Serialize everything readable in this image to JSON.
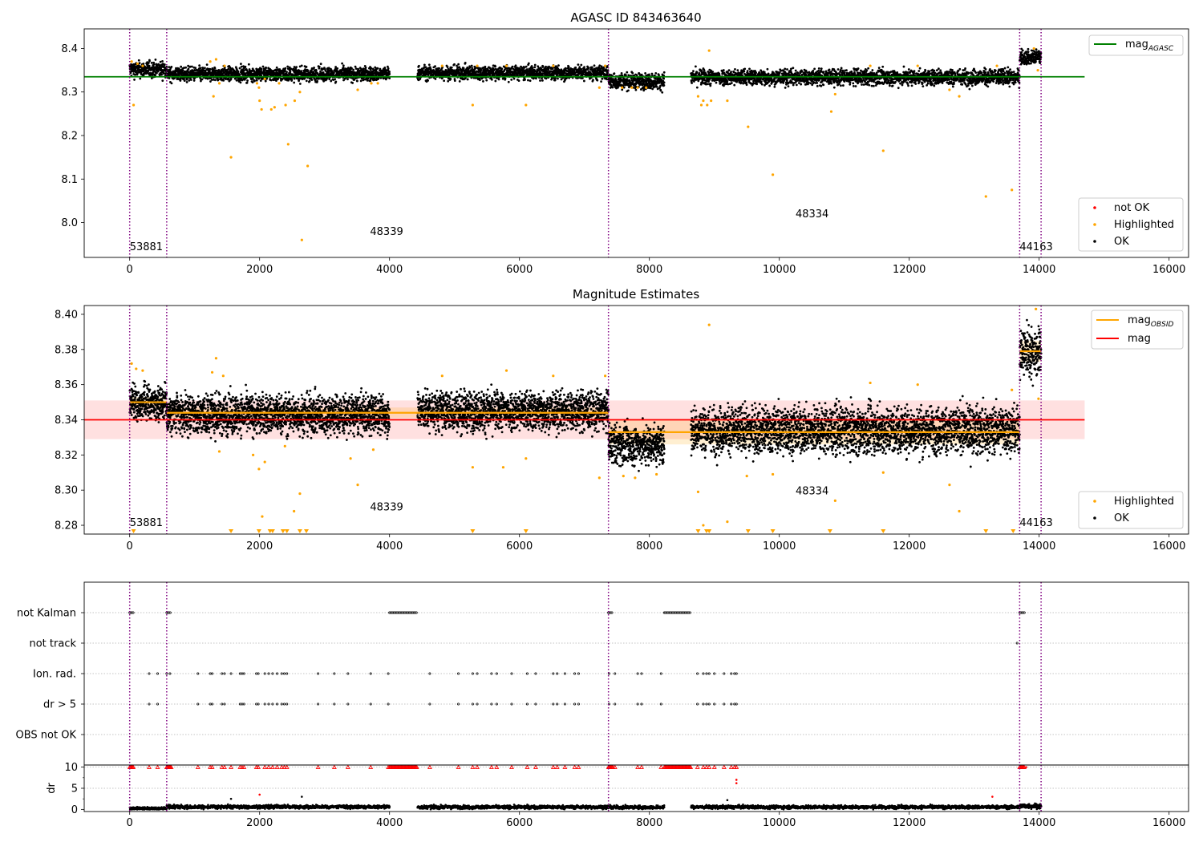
{
  "colors": {
    "ok": "#000000",
    "highlighted": "#ffa500",
    "not_ok": "#ff0000",
    "mag_agasc_line": "#008000",
    "mag_line": "#ff0000",
    "mag_obsid_line": "#ffa500",
    "mag_band": "#ffcccc",
    "obs_boundary": "#800080"
  },
  "chart_data": [
    {
      "type": "scatter",
      "title": "AGASC ID 843463640",
      "xlim": [
        -700,
        16300
      ],
      "ylim": [
        7.92,
        8.445
      ],
      "x_ticks": [
        0,
        2000,
        4000,
        6000,
        8000,
        10000,
        12000,
        14000,
        16000
      ],
      "x_tick_labels": [
        "0",
        "2000",
        "4000",
        "6000",
        "8000",
        "10000",
        "12000",
        "14000",
        "16000"
      ],
      "y_ticks": [
        8.0,
        8.1,
        8.2,
        8.3,
        8.4
      ],
      "y_tick_labels": [
        "8.0",
        "8.1",
        "8.2",
        "8.3",
        "8.4"
      ],
      "mag_agasc": 8.335,
      "mag_agasc_xrange": [
        -700,
        14700
      ],
      "obs_boundaries": [
        0,
        570,
        7370,
        13700,
        14030
      ],
      "obs_labels": [
        {
          "text": "53881",
          "x": 0,
          "y": 7.937
        },
        {
          "text": "48339",
          "x": 3700,
          "y": 7.972
        },
        {
          "text": "48334",
          "x": 10250,
          "y": 8.012
        },
        {
          "text": "44163",
          "x": 13700,
          "y": 7.937
        }
      ],
      "legend_lines": [
        {
          "name": "mag",
          "subscript": "AGASC"
        }
      ],
      "legend_points": [
        {
          "name": "not OK",
          "color_key": "not_ok"
        },
        {
          "name": "Highlighted",
          "color_key": "highlighted"
        },
        {
          "name": "OK",
          "color_key": "ok"
        }
      ],
      "legend_lines_position": "upper right",
      "legend_points_position": "lower right",
      "segments": [
        {
          "x": [
            0,
            570
          ],
          "center": 8.352,
          "spread": 0.009
        },
        {
          "x": [
            570,
            4000
          ],
          "center": 8.341,
          "spread": 0.008
        },
        {
          "x": [
            4430,
            7370
          ],
          "center": 8.344,
          "spread": 0.008
        },
        {
          "x": [
            7370,
            8230
          ],
          "center": 8.325,
          "spread": 0.009
        },
        {
          "x": [
            8640,
            13700
          ],
          "center": 8.334,
          "spread": 0.009
        },
        {
          "x": [
            13700,
            14030
          ],
          "center": 8.38,
          "spread": 0.008
        }
      ],
      "highlighted_points": [
        [
          30,
          8.37
        ],
        [
          60,
          8.27
        ],
        [
          120,
          8.365
        ],
        [
          200,
          8.36
        ],
        [
          1240,
          8.37
        ],
        [
          1290,
          8.29
        ],
        [
          1330,
          8.375
        ],
        [
          1380,
          8.32
        ],
        [
          1460,
          8.36
        ],
        [
          1560,
          8.15
        ],
        [
          1960,
          8.32
        ],
        [
          1990,
          8.31
        ],
        [
          2000,
          8.28
        ],
        [
          2030,
          8.26
        ],
        [
          2080,
          8.33
        ],
        [
          2180,
          8.26
        ],
        [
          2230,
          8.265
        ],
        [
          2300,
          8.32
        ],
        [
          2400,
          8.27
        ],
        [
          2440,
          8.18
        ],
        [
          2540,
          8.28
        ],
        [
          2620,
          8.3
        ],
        [
          2650,
          7.96
        ],
        [
          2740,
          8.13
        ],
        [
          3510,
          8.305
        ],
        [
          3720,
          8.32
        ],
        [
          3820,
          8.32
        ],
        [
          4810,
          8.36
        ],
        [
          5280,
          8.27
        ],
        [
          5350,
          8.36
        ],
        [
          5800,
          8.36
        ],
        [
          6100,
          8.27
        ],
        [
          6520,
          8.36
        ],
        [
          7230,
          8.31
        ],
        [
          7320,
          8.36
        ],
        [
          7580,
          8.31
        ],
        [
          7730,
          8.31
        ],
        [
          7820,
          8.31
        ],
        [
          7950,
          8.31
        ],
        [
          8750,
          8.29
        ],
        [
          8800,
          8.27
        ],
        [
          8830,
          8.28
        ],
        [
          8890,
          8.27
        ],
        [
          8920,
          8.395
        ],
        [
          8950,
          8.28
        ],
        [
          9200,
          8.28
        ],
        [
          9520,
          8.22
        ],
        [
          9900,
          8.11
        ],
        [
          10800,
          8.255
        ],
        [
          10860,
          8.295
        ],
        [
          11400,
          8.36
        ],
        [
          11600,
          8.165
        ],
        [
          12130,
          8.36
        ],
        [
          12620,
          8.305
        ],
        [
          12770,
          8.29
        ],
        [
          13180,
          8.06
        ],
        [
          13350,
          8.36
        ],
        [
          13580,
          8.075
        ],
        [
          13920,
          8.4
        ],
        [
          13980,
          8.35
        ]
      ],
      "not_ok_points": []
    },
    {
      "type": "scatter",
      "title": "Magnitude Estimates",
      "xlim": [
        -700,
        16300
      ],
      "ylim": [
        8.275,
        8.405
      ],
      "x_ticks": [
        0,
        2000,
        4000,
        6000,
        8000,
        10000,
        12000,
        14000,
        16000
      ],
      "x_tick_labels": [
        "0",
        "2000",
        "4000",
        "6000",
        "8000",
        "10000",
        "12000",
        "14000",
        "16000"
      ],
      "y_ticks": [
        8.28,
        8.3,
        8.32,
        8.34,
        8.36,
        8.38,
        8.4
      ],
      "y_tick_labels": [
        "8.28",
        "8.30",
        "8.32",
        "8.34",
        "8.36",
        "8.38",
        "8.40"
      ],
      "mag": 8.34,
      "mag_band": [
        8.329,
        8.351
      ],
      "mag_xrange": [
        -700,
        14700
      ],
      "mag_obsid": [
        {
          "x": [
            0,
            570
          ],
          "value": 8.35
        },
        {
          "x": [
            570,
            7370
          ],
          "value": 8.344
        },
        {
          "x": [
            7370,
            13700
          ],
          "value": 8.333
        },
        {
          "x": [
            13700,
            14030
          ],
          "value": 8.379
        }
      ],
      "mag_obsid_band": [
        {
          "x": [
            0,
            570
          ],
          "range": [
            8.347,
            8.353
          ]
        },
        {
          "x": [
            570,
            7370
          ],
          "range": [
            8.341,
            8.347
          ]
        },
        {
          "x": [
            7370,
            13700
          ],
          "range": [
            8.326,
            8.34
          ]
        },
        {
          "x": [
            13700,
            14030
          ],
          "range": [
            8.373,
            8.385
          ]
        }
      ],
      "obs_boundaries": [
        0,
        570,
        7370,
        13700,
        14030
      ],
      "obs_labels": [
        {
          "text": "53881",
          "x": 0,
          "y": 8.2795
        },
        {
          "text": "48339",
          "x": 3700,
          "y": 8.2885
        },
        {
          "text": "48334",
          "x": 10250,
          "y": 8.2975
        },
        {
          "text": "44163",
          "x": 13700,
          "y": 8.2795
        }
      ],
      "legend_lines": [
        {
          "name": "mag",
          "subscript": "OBSID",
          "color_key": "mag_obsid_line"
        },
        {
          "name": "mag",
          "subscript": "",
          "color_key": "mag_line"
        }
      ],
      "legend_points": [
        {
          "name": "Highlighted",
          "color_key": "highlighted"
        },
        {
          "name": "OK",
          "color_key": "ok"
        }
      ],
      "legend_lines_position": "upper right",
      "legend_points_position": "lower right",
      "segments": [
        {
          "x": [
            0,
            570
          ],
          "center": 8.35,
          "spread": 0.0045
        },
        {
          "x": [
            570,
            4000
          ],
          "center": 8.343,
          "spread": 0.0055
        },
        {
          "x": [
            4430,
            7370
          ],
          "center": 8.345,
          "spread": 0.0055
        },
        {
          "x": [
            7370,
            8230
          ],
          "center": 8.326,
          "spread": 0.0055
        },
        {
          "x": [
            8640,
            13700
          ],
          "center": 8.334,
          "spread": 0.0065
        },
        {
          "x": [
            13700,
            14030
          ],
          "center": 8.379,
          "spread": 0.007
        }
      ],
      "highlighted_points": [
        [
          30,
          8.372
        ],
        [
          100,
          8.369
        ],
        [
          200,
          8.368
        ],
        [
          1270,
          8.367
        ],
        [
          1330,
          8.375
        ],
        [
          1380,
          8.322
        ],
        [
          1440,
          8.365
        ],
        [
          1900,
          8.32
        ],
        [
          1990,
          8.312
        ],
        [
          2040,
          8.285
        ],
        [
          2080,
          8.316
        ],
        [
          2390,
          8.325
        ],
        [
          2530,
          8.288
        ],
        [
          2620,
          8.298
        ],
        [
          3400,
          8.318
        ],
        [
          3510,
          8.303
        ],
        [
          3750,
          8.323
        ],
        [
          4810,
          8.365
        ],
        [
          5280,
          8.313
        ],
        [
          5750,
          8.313
        ],
        [
          5800,
          8.368
        ],
        [
          6100,
          8.318
        ],
        [
          6520,
          8.365
        ],
        [
          7230,
          8.307
        ],
        [
          7320,
          8.365
        ],
        [
          7600,
          8.308
        ],
        [
          7780,
          8.307
        ],
        [
          8110,
          8.309
        ],
        [
          8750,
          8.299
        ],
        [
          8830,
          8.28
        ],
        [
          8920,
          8.394
        ],
        [
          9200,
          8.282
        ],
        [
          9500,
          8.308
        ],
        [
          9900,
          8.309
        ],
        [
          10860,
          8.294
        ],
        [
          11400,
          8.361
        ],
        [
          11600,
          8.31
        ],
        [
          12130,
          8.36
        ],
        [
          12620,
          8.303
        ],
        [
          12770,
          8.288
        ],
        [
          13580,
          8.357
        ],
        [
          13950,
          8.403
        ],
        [
          13990,
          8.352
        ]
      ],
      "clipped_highlighted_x": [
        60,
        1560,
        1990,
        2160,
        2200,
        2360,
        2420,
        2620,
        2720,
        5280,
        6100,
        8750,
        8880,
        8920,
        9520,
        9900,
        10780,
        11600,
        13180,
        13600
      ]
    },
    {
      "type": "scatter",
      "title": "",
      "xlim": [
        -700,
        16300
      ],
      "x_ticks": [
        0,
        2000,
        4000,
        6000,
        8000,
        10000,
        12000,
        14000,
        16000
      ],
      "x_tick_labels": [
        "0",
        "2000",
        "4000",
        "6000",
        "8000",
        "10000",
        "12000",
        "14000",
        "16000"
      ],
      "flag_rows": [
        "not Kalman",
        "not track",
        "Ion. rad.",
        "dr > 5",
        "OBS not OK"
      ],
      "obs_boundaries": [
        0,
        570,
        7370,
        13700,
        14030
      ],
      "flags": {
        "not Kalman": {
          "clusters": [
            [
              0,
              60
            ],
            [
              570,
              640
            ],
            [
              4000,
              4430
            ],
            [
              7370,
              7440
            ],
            [
              8230,
              8640
            ],
            [
              13700,
              13780
            ]
          ],
          "points": []
        },
        "not track": {
          "clusters": [],
          "points": [
            13660
          ]
        },
        "Ion. rad.": {
          "clusters": [],
          "points": [
            300,
            430,
            570,
            620,
            1050,
            1240,
            1270,
            1420,
            1460,
            1560,
            1700,
            1730,
            1760,
            1950,
            1980,
            2080,
            2140,
            2200,
            2270,
            2340,
            2380,
            2420,
            2900,
            3150,
            3360,
            3710,
            3980,
            4620,
            5060,
            5280,
            5350,
            5570,
            5650,
            5880,
            6120,
            6250,
            6520,
            6580,
            6700,
            6850,
            6910,
            7380,
            7470,
            7820,
            7880,
            8180,
            8740,
            8830,
            8880,
            8920,
            9000,
            9150,
            9260,
            9310,
            9340
          ]
        },
        "dr > 5": {
          "clusters": [],
          "points": [
            300,
            430,
            1050,
            1240,
            1270,
            1420,
            1460,
            1700,
            1730,
            1760,
            1950,
            1980,
            2080,
            2140,
            2200,
            2270,
            2340,
            2380,
            2420,
            2900,
            3150,
            3360,
            3710,
            3980,
            4620,
            5060,
            5280,
            5350,
            5570,
            5650,
            5880,
            6120,
            6250,
            6520,
            6580,
            6700,
            6850,
            6910,
            7380,
            7470,
            7820,
            7880,
            8180,
            8740,
            8830,
            8880,
            8920,
            9000,
            9150,
            9260,
            9310,
            9340
          ]
        },
        "OBS not OK": {
          "clusters": [],
          "points": []
        }
      },
      "dr": {
        "ylabel": "dr",
        "ylim": [
          -0.5,
          10.5
        ],
        "y_ticks": [
          0,
          5,
          10
        ],
        "y_tick_labels": [
          "0",
          "5",
          "10"
        ],
        "segments": [
          {
            "x": [
              0,
              570
            ],
            "center": 0.25,
            "spread": 0.15
          },
          {
            "x": [
              570,
              4000
            ],
            "center": 0.6,
            "spread": 0.2
          },
          {
            "x": [
              4430,
              7370
            ],
            "center": 0.55,
            "spread": 0.2
          },
          {
            "x": [
              7370,
              8230
            ],
            "center": 0.5,
            "spread": 0.2
          },
          {
            "x": [
              8640,
              13700
            ],
            "center": 0.55,
            "spread": 0.2
          },
          {
            "x": [
              13700,
              14030
            ],
            "center": 0.8,
            "spread": 0.3
          }
        ],
        "outliers_black": [
          [
            1560,
            2.5
          ],
          [
            2650,
            3
          ],
          [
            9200,
            2.2
          ]
        ],
        "outliers_red": [
          [
            2000,
            3.5
          ],
          [
            9340,
            7
          ],
          [
            9340,
            6.2
          ],
          [
            13280,
            3
          ],
          [
            13800,
            10
          ]
        ],
        "capped_red_clusters": [
          [
            0,
            60
          ],
          [
            570,
            640
          ],
          [
            4000,
            4430
          ],
          [
            7370,
            7440
          ],
          [
            8230,
            8640
          ],
          [
            13700,
            13780
          ]
        ],
        "capped_red_points": [
          300,
          430,
          570,
          620,
          1050,
          1240,
          1270,
          1420,
          1460,
          1560,
          1700,
          1730,
          1760,
          1950,
          1980,
          2080,
          2140,
          2200,
          2270,
          2340,
          2380,
          2420,
          2900,
          3150,
          3360,
          3710,
          3980,
          4620,
          5060,
          5280,
          5350,
          5570,
          5650,
          5880,
          6120,
          6250,
          6520,
          6580,
          6700,
          6850,
          6910,
          7380,
          7470,
          7820,
          7880,
          8180,
          8740,
          8830,
          8880,
          8920,
          9000,
          9150,
          9260,
          9310,
          9340
        ]
      }
    }
  ]
}
